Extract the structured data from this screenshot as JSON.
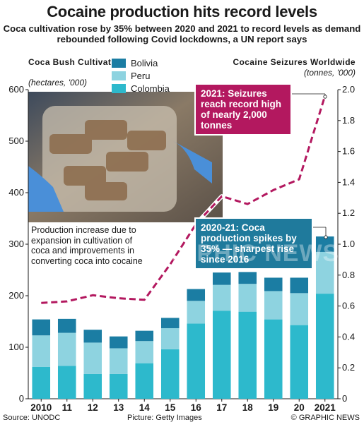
{
  "title": "Cocaine production hits record levels",
  "subtitle": "Coca cultivation rose by 35% between 2020 and 2021 to record levels as demand rebounded following Covid lockdowns, a UN report says",
  "left_axis": {
    "title": "Coca Bush Cultivation",
    "unit": "(hectares, '000)"
  },
  "right_axis": {
    "title": "Cocaine Seizures Worldwide",
    "unit": "(tonnes, '000)"
  },
  "colors": {
    "bolivia": "#1b7da3",
    "peru": "#8ed3e0",
    "colombia": "#2db9cc",
    "seizures": "#b3185f",
    "callout_blue": "#1f7a9c"
  },
  "annotations": {
    "seizures": "2021: Seizures reach record high of nearly 2,000 tonnes",
    "coca": "2020-21: Coca production spikes by 35% — sharpest rise since 2016",
    "production_note": "Production increase due to expansion in cultivation of coca and improvements in converting coca into cocaine"
  },
  "footer": {
    "source": "Source: UNODC",
    "picture": "Picture: Getty Images",
    "brand": "© GRAPHIC NEWS"
  },
  "watermark": "GRAPHIC NEWS",
  "chart_data": {
    "type": "bar",
    "stacked": true,
    "categories": [
      "2010",
      "11",
      "12",
      "13",
      "14",
      "15",
      "16",
      "17",
      "18",
      "19",
      "20",
      "2021"
    ],
    "series": [
      {
        "name": "Colombia",
        "values": [
          62,
          64,
          48,
          48,
          69,
          96,
          146,
          171,
          169,
          154,
          143,
          204
        ]
      },
      {
        "name": "Peru",
        "values": [
          61,
          64,
          61,
          50,
          43,
          41,
          44,
          50,
          54,
          55,
          62,
          81
        ]
      },
      {
        "name": "Bolivia",
        "values": [
          31,
          27,
          25,
          23,
          20,
          20,
          23,
          24,
          23,
          26,
          30,
          30
        ]
      }
    ],
    "ylim": [
      0,
      600
    ],
    "yticks": [
      0,
      100,
      200,
      300,
      400,
      500,
      600
    ],
    "line_series": {
      "name": "Cocaine seizures",
      "axis": "right",
      "x": [
        "2010",
        "11",
        "12",
        "13",
        "14",
        "15",
        "16",
        "17",
        "18",
        "19",
        "20",
        "2021"
      ],
      "values": [
        0.62,
        0.63,
        0.67,
        0.65,
        0.64,
        0.87,
        1.13,
        1.31,
        1.26,
        1.35,
        1.42,
        1.96
      ]
    },
    "y2lim": [
      0,
      2.0
    ],
    "y2ticks": [
      "0",
      "0.2",
      "0.4",
      "0.6",
      "0.8",
      "1.0",
      "1.2",
      "1.4",
      "1.6",
      "1.8",
      "2.0"
    ],
    "grid": false,
    "legend": "top-center"
  }
}
